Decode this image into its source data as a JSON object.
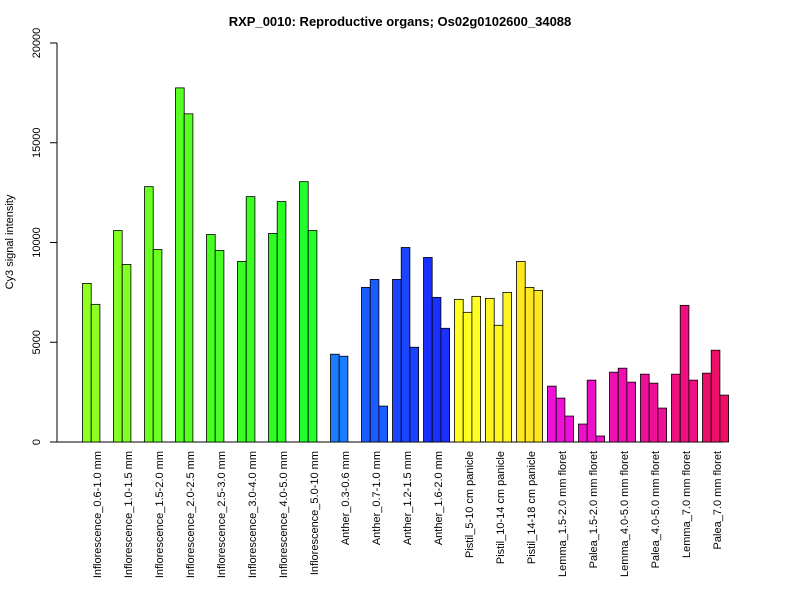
{
  "chart_data": {
    "type": "bar",
    "title": "RXP_0010: Reproductive organs; Os02g0102600_34088",
    "xlabel": "",
    "ylabel": "Cy3 signal intensity",
    "ylim": [
      0,
      20000
    ],
    "yticks": [
      0,
      5000,
      10000,
      15000,
      20000
    ],
    "grid": false,
    "legend": "none",
    "groups": [
      {
        "label": "Inflorescence_0.6-1.0 mm",
        "color": "#8fff22",
        "values": [
          7950,
          6900
        ]
      },
      {
        "label": "Inflorescence_1.0-1.5 mm",
        "color": "#82ff22",
        "values": [
          10600,
          8900
        ]
      },
      {
        "label": "Inflorescence_1.5-2.0 mm",
        "color": "#6cff22",
        "values": [
          12800,
          9650
        ]
      },
      {
        "label": "Inflorescence_2.0-2.5 mm",
        "color": "#58ff22",
        "values": [
          17750,
          16450
        ]
      },
      {
        "label": "Inflorescence_2.5-3.0 mm",
        "color": "#48ff22",
        "values": [
          10400,
          9600
        ]
      },
      {
        "label": "Inflorescence_3.0-4.0 mm",
        "color": "#3aff22",
        "values": [
          9050,
          12300
        ]
      },
      {
        "label": "Inflorescence_4.0-5.0 mm",
        "color": "#2bff22",
        "values": [
          10450,
          12050
        ]
      },
      {
        "label": "Inflorescence_5.0-10 mm",
        "color": "#22ff2a",
        "values": [
          13050,
          10600
        ]
      },
      {
        "label": "Anther_0.3-0.6 mm",
        "color": "#1a7dff",
        "values": [
          4400,
          4300
        ]
      },
      {
        "label": "Anther_0.7-1.0 mm",
        "color": "#1a5cff",
        "values": [
          7750,
          8150,
          1800
        ]
      },
      {
        "label": "Anther_1.2-1.5 mm",
        "color": "#1a44ff",
        "values": [
          8150,
          9750,
          4750
        ]
      },
      {
        "label": "Anther_1.6-2.0 mm",
        "color": "#1a30ff",
        "values": [
          9250,
          7250,
          5700
        ]
      },
      {
        "label": "Pistil_5-10 cm panicle",
        "color": "#ffff22",
        "values": [
          7150,
          6500,
          7300
        ]
      },
      {
        "label": "Pistil_10-14 cm panicle",
        "color": "#fff522",
        "values": [
          7200,
          5850,
          7500
        ]
      },
      {
        "label": "Pistil_14-18 cm panicle",
        "color": "#ffe622",
        "values": [
          9050,
          7750,
          7600
        ]
      },
      {
        "label": "Lemma_1.5-2.0 mm floret",
        "color": "#ee10d8",
        "values": [
          2800,
          2200,
          1300
        ]
      },
      {
        "label": "Palea_1.5-2.0 mm floret",
        "color": "#ee10c8",
        "values": [
          900,
          3100,
          300
        ]
      },
      {
        "label": "Lemma_4.0-5.0 mm floret",
        "color": "#ee10b0",
        "values": [
          3500,
          3700,
          3000
        ]
      },
      {
        "label": "Palea_4.0-5.0 mm floret",
        "color": "#ee1098",
        "values": [
          3400,
          2950,
          1700
        ]
      },
      {
        "label": "Lemma_7.0 mm floret",
        "color": "#ee1080",
        "values": [
          3400,
          6850,
          3100
        ]
      },
      {
        "label": "Palea_7.0 mm floret",
        "color": "#ee1068",
        "values": [
          3450,
          4600,
          2350
        ]
      }
    ]
  }
}
